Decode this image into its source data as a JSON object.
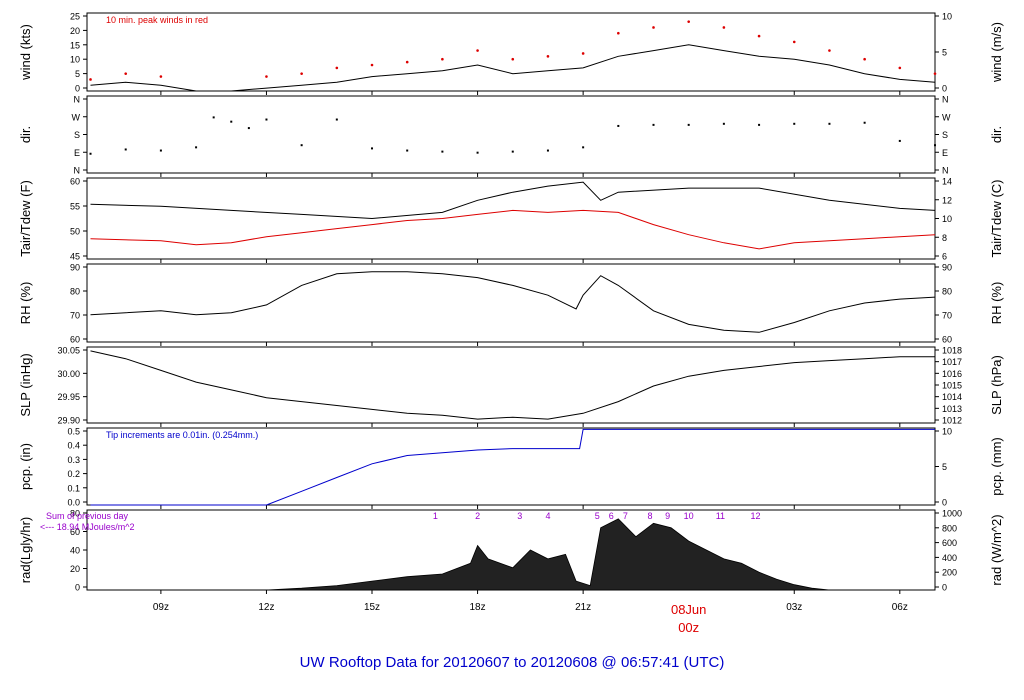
{
  "title": "UW Rooftop Data for 20120607  to  20120608 @ 06:57:41  (UTC)",
  "colors": {
    "title": "#0000cc",
    "axis": "#000000",
    "red": "#dd0000",
    "blue": "#0000cc",
    "purple": "#9900cc"
  },
  "chart_data": {
    "type": "line",
    "x_axis": {
      "ticks": [
        "09z",
        "12z",
        "15z",
        "18z",
        "21z",
        "03z",
        "06z"
      ],
      "tick_hours": [
        9,
        12,
        15,
        18,
        21,
        27,
        30
      ],
      "date_label": "08Jun",
      "date_sublabel": "00z",
      "range_hours": [
        6.9,
        31.0
      ]
    },
    "panels": [
      {
        "id": "wind",
        "ylabel_left": "wind (kts)",
        "ylabel_right": "wind (m/s)",
        "left_ticks": [
          "0",
          "5",
          "10",
          "15",
          "20",
          "25"
        ],
        "right_ticks": [
          "0",
          "5",
          "10"
        ],
        "ylim": [
          0,
          27
        ],
        "annotation": "10 min. peak winds in red",
        "series": [
          {
            "name": "wind speed",
            "color": "#000000",
            "x": [
              7,
              8,
              9,
              10,
              11,
              12,
              13,
              14,
              15,
              16,
              17,
              18,
              19,
              20,
              21,
              22,
              23,
              24,
              25,
              26,
              27,
              28,
              29,
              30,
              31
            ],
            "y": [
              2,
              3,
              2,
              0,
              0,
              1,
              2,
              3,
              5,
              6,
              7,
              9,
              6,
              7,
              8,
              12,
              14,
              16,
              14,
              12,
              11,
              9,
              6,
              4,
              3
            ]
          },
          {
            "name": "peak",
            "color": "#dd0000",
            "x": [
              7,
              8,
              9,
              10,
              11,
              12,
              13,
              14,
              15,
              16,
              17,
              18,
              19,
              20,
              21,
              22,
              23,
              24,
              25,
              26,
              27,
              28,
              29,
              30,
              31
            ],
            "y": [
              4,
              6,
              5,
              0,
              0,
              5,
              6,
              8,
              9,
              10,
              11,
              14,
              11,
              12,
              13,
              20,
              22,
              24,
              22,
              19,
              17,
              14,
              11,
              8,
              6
            ]
          }
        ]
      },
      {
        "id": "dir",
        "ylabel_left": "dir.",
        "ylabel_right": "dir.",
        "left_ticks": [
          "N",
          "E",
          "S",
          "W",
          "N"
        ],
        "right_ticks": [
          "N",
          "E",
          "S",
          "W",
          "N"
        ],
        "ylim": [
          0,
          360
        ],
        "series": [
          {
            "name": "direction",
            "color": "#000000",
            "x": [
              7,
              8,
              9,
              10,
              10.5,
              11,
              11.5,
              12,
              13,
              14,
              15,
              16,
              17,
              18,
              19,
              20,
              21,
              22,
              23,
              24,
              25,
              26,
              27,
              28,
              29,
              30,
              31
            ],
            "y": [
              90,
              110,
              105,
              120,
              260,
              240,
              210,
              250,
              130,
              250,
              115,
              105,
              100,
              95,
              100,
              105,
              120,
              220,
              225,
              225,
              230,
              225,
              230,
              230,
              235,
              150,
              130
            ]
          }
        ]
      },
      {
        "id": "temp",
        "ylabel_left": "Tair/Tdew (F)",
        "ylabel_right": "Tair/Tdew (C)",
        "left_ticks": [
          "45",
          "50",
          "55",
          "60"
        ],
        "right_ticks": [
          "6",
          "8",
          "10",
          "12",
          "14"
        ],
        "ylim": [
          40.5,
          60.5
        ],
        "series": [
          {
            "name": "Tair",
            "color": "#000000",
            "x": [
              7,
              9,
              11,
              13,
              15,
              17,
              18,
              19,
              20,
              21,
              21.5,
              22,
              24,
              26,
              28,
              30,
              31
            ],
            "y": [
              54,
              53.5,
              52.5,
              51.5,
              50.5,
              52,
              55,
              57,
              58.5,
              59.5,
              55,
              57,
              58,
              58,
              55,
              53,
              52.5
            ]
          },
          {
            "name": "Tdew",
            "color": "#dd0000",
            "x": [
              7,
              9,
              10,
              11,
              12,
              13,
              14,
              15,
              16,
              17,
              18,
              19,
              20,
              21,
              22,
              23,
              24,
              25,
              26,
              27,
              28,
              29,
              30,
              31
            ],
            "y": [
              45.5,
              45,
              44,
              44.5,
              46,
              47,
              48,
              49,
              50,
              50.5,
              51.5,
              52.5,
              52,
              52.5,
              52,
              49,
              46.5,
              44.5,
              43,
              44.5,
              45,
              45.5,
              46,
              46.5
            ]
          }
        ]
      },
      {
        "id": "rh",
        "ylabel_left": "RH (%)",
        "ylabel_right": "RH (%)",
        "left_ticks": [
          "60",
          "70",
          "80",
          "90"
        ],
        "right_ticks": [
          "60",
          "70",
          "80",
          "90"
        ],
        "ylim": [
          56,
          96
        ],
        "series": [
          {
            "name": "RH",
            "color": "#000000",
            "x": [
              7,
              9,
              10,
              11,
              12,
              13,
              14,
              15,
              16,
              17,
              18,
              19,
              20,
              20.8,
              21,
              21.5,
              22,
              23,
              24,
              25,
              26,
              27,
              28,
              29,
              30,
              31
            ],
            "y": [
              70,
              72,
              70,
              71,
              75,
              85,
              91,
              92,
              92,
              91,
              89,
              85,
              80,
              73,
              80,
              90,
              85,
              72,
              65,
              62,
              61,
              66,
              72,
              76,
              78,
              79
            ]
          }
        ]
      },
      {
        "id": "slp",
        "ylabel_left": "SLP (inHg)",
        "ylabel_right": "SLP (hPa)",
        "left_ticks": [
          "29.90",
          "29.95",
          "30.00",
          "30.05"
        ],
        "right_ticks": [
          "1012",
          "1013",
          "1014",
          "1015",
          "1016",
          "1017",
          "1018"
        ],
        "ylim": [
          29.865,
          30.06
        ],
        "series": [
          {
            "name": "SLP",
            "color": "#000000",
            "x": [
              7,
              8,
              9,
              10,
              11,
              12,
              13,
              14,
              15,
              16,
              17,
              18,
              19,
              20,
              21,
              22,
              23,
              24,
              25,
              26,
              27,
              28,
              29,
              30,
              31
            ],
            "y": [
              30.05,
              30.03,
              30.0,
              29.97,
              29.95,
              29.93,
              29.92,
              29.91,
              29.9,
              29.89,
              29.885,
              29.875,
              29.88,
              29.875,
              29.89,
              29.92,
              29.96,
              29.985,
              30.0,
              30.01,
              30.02,
              30.025,
              30.03,
              30.035,
              30.035
            ]
          }
        ]
      },
      {
        "id": "pcp",
        "ylabel_left": "pcp. (in)",
        "ylabel_right": "pcp. (mm)",
        "left_ticks": [
          "0.0",
          "0.1",
          "0.2",
          "0.3",
          "0.4",
          "0.5"
        ],
        "right_ticks": [
          "0",
          "5",
          "10"
        ],
        "ylim": [
          0,
          0.56
        ],
        "annotation": "Tip increments are 0.01in. (0.254mm.)",
        "series": [
          {
            "name": "precip",
            "color": "#0000cc",
            "x": [
              7,
              12,
              13,
              14,
              15,
              16,
              17,
              18,
              19,
              20,
              20.9,
              21,
              31
            ],
            "y": [
              0,
              0,
              0.1,
              0.2,
              0.3,
              0.36,
              0.38,
              0.4,
              0.41,
              0.41,
              0.41,
              0.55,
              0.55
            ]
          }
        ]
      },
      {
        "id": "rad",
        "ylabel_left": "rad(Lgly/hr)",
        "ylabel_right": "rad (W/m^2)",
        "left_ticks": [
          "0",
          "20",
          "40",
          "60",
          "80"
        ],
        "right_ticks": [
          "0",
          "200",
          "400",
          "600",
          "800",
          "1000"
        ],
        "ylim": [
          0,
          90
        ],
        "annotation_line1": "Sum of previous day",
        "annotation_line2": "<--- 18.94 MJoules/m^2",
        "hour_labels": [
          "1",
          "2",
          "3",
          "4",
          "5",
          "6",
          "7",
          "8",
          "9",
          "10",
          "11",
          "12"
        ],
        "hour_label_x": [
          16.8,
          18.0,
          19.2,
          20.0,
          21.4,
          21.8,
          22.2,
          22.9,
          23.4,
          24.0,
          24.9,
          25.9
        ],
        "series": [
          {
            "name": "radiation",
            "color": "#000000",
            "x": [
              12,
              13,
              14,
              15,
              16,
              17,
              17.8,
              18,
              18.3,
              19,
              19.5,
              20,
              20.5,
              20.8,
              21.2,
              21.5,
              22,
              22.5,
              23,
              23.5,
              24,
              24.5,
              25,
              25.5,
              26,
              26.5,
              27,
              27.5,
              28
            ],
            "y": [
              0,
              2,
              5,
              10,
              15,
              18,
              30,
              50,
              35,
              25,
              45,
              35,
              40,
              10,
              5,
              70,
              80,
              60,
              75,
              70,
              55,
              45,
              35,
              30,
              20,
              12,
              6,
              2,
              0
            ]
          }
        ]
      }
    ]
  }
}
